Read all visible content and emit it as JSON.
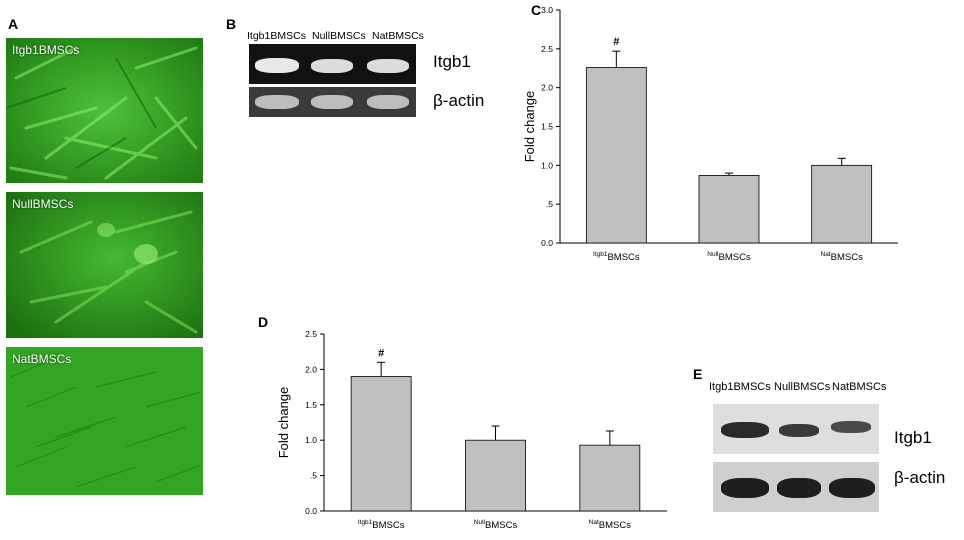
{
  "panels": {
    "a": {
      "letter": "A",
      "images": [
        {
          "label": "Itgb1BMSCs",
          "style": "dense-fluorescent"
        },
        {
          "label": "NullBMSCs",
          "style": "dense-fluorescent"
        },
        {
          "label": "NatBMSCs",
          "style": "bright-field-green"
        }
      ]
    },
    "b": {
      "letter": "B",
      "lanes": [
        "Itgb1BMSCs",
        "NullBMSCs",
        "NatBMSCs"
      ],
      "rows": [
        "Itgb1",
        "β-actin"
      ]
    },
    "c": {
      "letter": "C"
    },
    "d": {
      "letter": "D"
    },
    "e": {
      "letter": "E",
      "lanes": [
        "Itgb1BMSCs",
        "NullBMSCs",
        "NatBMSCs"
      ],
      "rows": [
        "Itgb1",
        "β-actin"
      ]
    }
  },
  "colors": {
    "bar_fill": "#c0c0c0",
    "micro_green": "#2fa61c",
    "gel_bg": "#141414",
    "blot_bg": "#d9d9d9"
  },
  "chart_data": [
    {
      "panel": "C",
      "type": "bar",
      "categories": [
        {
          "sup": "Itgb1",
          "base": "BMSCs"
        },
        {
          "sup": "Null",
          "base": "BMSCs"
        },
        {
          "sup": "Nat",
          "base": "BMSCs"
        }
      ],
      "values": [
        2.26,
        0.87,
        1.0
      ],
      "errors": [
        0.21,
        0.03,
        0.09
      ],
      "annotations": [
        "#",
        "",
        ""
      ],
      "ylabel": "Fold change",
      "ylim": [
        0,
        3.0
      ],
      "yticks": [
        "0.0",
        ".5",
        "1.0",
        "1.5",
        "2.0",
        "2.5",
        "3.0"
      ],
      "yticks_values": [
        0,
        0.5,
        1.0,
        1.5,
        2.0,
        2.5,
        3.0
      ],
      "grid": false
    },
    {
      "panel": "D",
      "type": "bar",
      "categories": [
        {
          "sup": "Itgb1",
          "base": "BMSCs"
        },
        {
          "sup": "Null",
          "base": "BMSCs"
        },
        {
          "sup": "Nat",
          "base": "BMSCs"
        }
      ],
      "values": [
        1.9,
        1.0,
        0.93
      ],
      "errors": [
        0.2,
        0.2,
        0.2
      ],
      "annotations": [
        "#",
        "",
        ""
      ],
      "ylabel": "Fold change",
      "ylim": [
        0,
        2.5
      ],
      "yticks": [
        "0.0",
        ".5",
        "1.0",
        "1.5",
        "2.0",
        "2.5"
      ],
      "yticks_values": [
        0,
        0.5,
        1.0,
        1.5,
        2.0,
        2.5
      ],
      "grid": false
    }
  ]
}
